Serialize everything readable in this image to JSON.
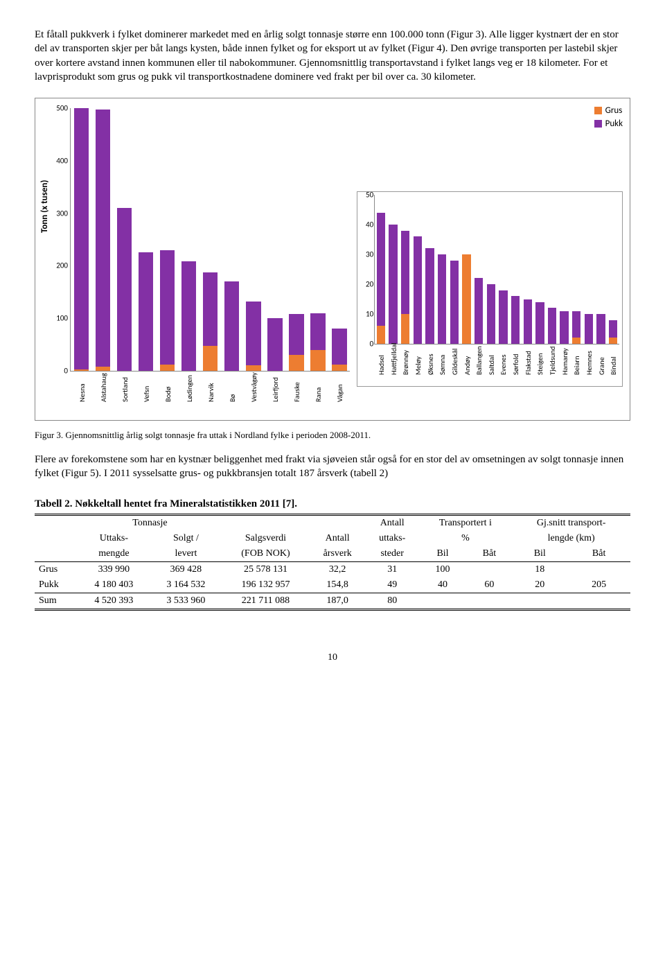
{
  "para1": "Et fåtall pukkverk i fylket dominerer markedet med en årlig solgt tonnasje større enn 100.000 tonn (Figur 3). Alle ligger kystnært der en stor del av transporten skjer per båt langs kysten, både innen fylket og for eksport ut av fylket (Figur 4). Den øvrige transporten per lastebil skjer over kortere avstand innen kommunen eller til nabokommuner. Gjennomsnittlig transportavstand i fylket langs veg er 18 kilometer. For et lavprisprodukt som grus og pukk vil transportkostnadene dominere ved frakt per bil over ca. 30 kilometer.",
  "chart": {
    "ylabel": "Tonn (x tusen)",
    "legend": [
      {
        "label": "Grus",
        "color": "#ed7d31"
      },
      {
        "label": "Pukk",
        "color": "#8330a5"
      }
    ],
    "main": {
      "ylim": 500,
      "ytick_step": 100,
      "categories": [
        "Nesna",
        "Alstahaug",
        "Sortland",
        "Vefsn",
        "Bodø",
        "Lødingen",
        "Narvik",
        "Bø",
        "Vestvågøy",
        "Leirfjord",
        "Fauske",
        "Rana",
        "Vågan"
      ],
      "grus": [
        3,
        8,
        0,
        0,
        12,
        0,
        48,
        0,
        10,
        0,
        30,
        40,
        12
      ],
      "pukk": [
        500,
        490,
        310,
        225,
        218,
        208,
        140,
        170,
        122,
        100,
        78,
        70,
        68
      ]
    },
    "inset": {
      "ylim": 50,
      "ytick_step": 10,
      "categories": [
        "Hadsel",
        "Hattfjelldal",
        "Brønnøy",
        "Meløy",
        "Øksnes",
        "Sømna",
        "Gildeskål",
        "Andøy",
        "Ballangen",
        "Saltdal",
        "Evenes",
        "Sørfold",
        "Flakstad",
        "Steigen",
        "Tjeldsund",
        "Hamarøy",
        "Beiarn",
        "Hemnes",
        "Grane",
        "Bindal"
      ],
      "grus": [
        6,
        0,
        10,
        0,
        0,
        0,
        0,
        30,
        0,
        0,
        0,
        0,
        0,
        0,
        0,
        0,
        2,
        0,
        0,
        2
      ],
      "pukk": [
        38,
        40,
        28,
        36,
        32,
        30,
        28,
        0,
        22,
        20,
        18,
        16,
        15,
        14,
        12,
        11,
        9,
        10,
        10,
        6
      ]
    },
    "colors": {
      "grus": "#ed7d31",
      "pukk": "#8330a5",
      "border": "#888888",
      "bg": "#ffffff"
    }
  },
  "fig_caption": "Figur 3. Gjennomsnittlig årlig solgt tonnasje fra uttak i Nordland fylke i perioden 2008-2011.",
  "para2": "Flere av forekomstene som har en kystnær beliggenhet med frakt via sjøveien står også for en stor del av omsetningen av solgt tonnasje innen fylket (Figur 5). I 2011 sysselsatte grus- og pukkbransjen totalt 187 årsverk (tabell 2)",
  "table": {
    "caption": "Tabell 2. Nøkkeltall hentet fra Mineralstatistikken 2011 [7].",
    "head1": [
      "",
      "Tonnasje",
      "",
      "",
      "",
      "Antall",
      "Transportert i",
      "Gj.snitt transport-"
    ],
    "head2_labels": {
      "uttaks": "Uttaks-",
      "solgt": "Solgt /",
      "salgs": "Salgsverdi",
      "antall": "Antall",
      "uttakssteder": "uttaks-",
      "pct": "%",
      "lengde": "lengde (km)"
    },
    "head3": [
      "",
      "mengde",
      "levert",
      "(FOB NOK)",
      "årsverk",
      "steder",
      "Bil",
      "Båt",
      "Bil",
      "Båt"
    ],
    "rows": [
      [
        "Grus",
        "339 990",
        "369 428",
        "25 578 131",
        "32,2",
        "31",
        "100",
        "",
        "18",
        ""
      ],
      [
        "Pukk",
        "4 180 403",
        "3 164 532",
        "196 132 957",
        "154,8",
        "49",
        "40",
        "60",
        "20",
        "205"
      ],
      [
        "Sum",
        "4 520 393",
        "3 533 960",
        "221 711 088",
        "187,0",
        "80",
        "",
        "",
        "",
        ""
      ]
    ]
  },
  "pagenum": "10"
}
